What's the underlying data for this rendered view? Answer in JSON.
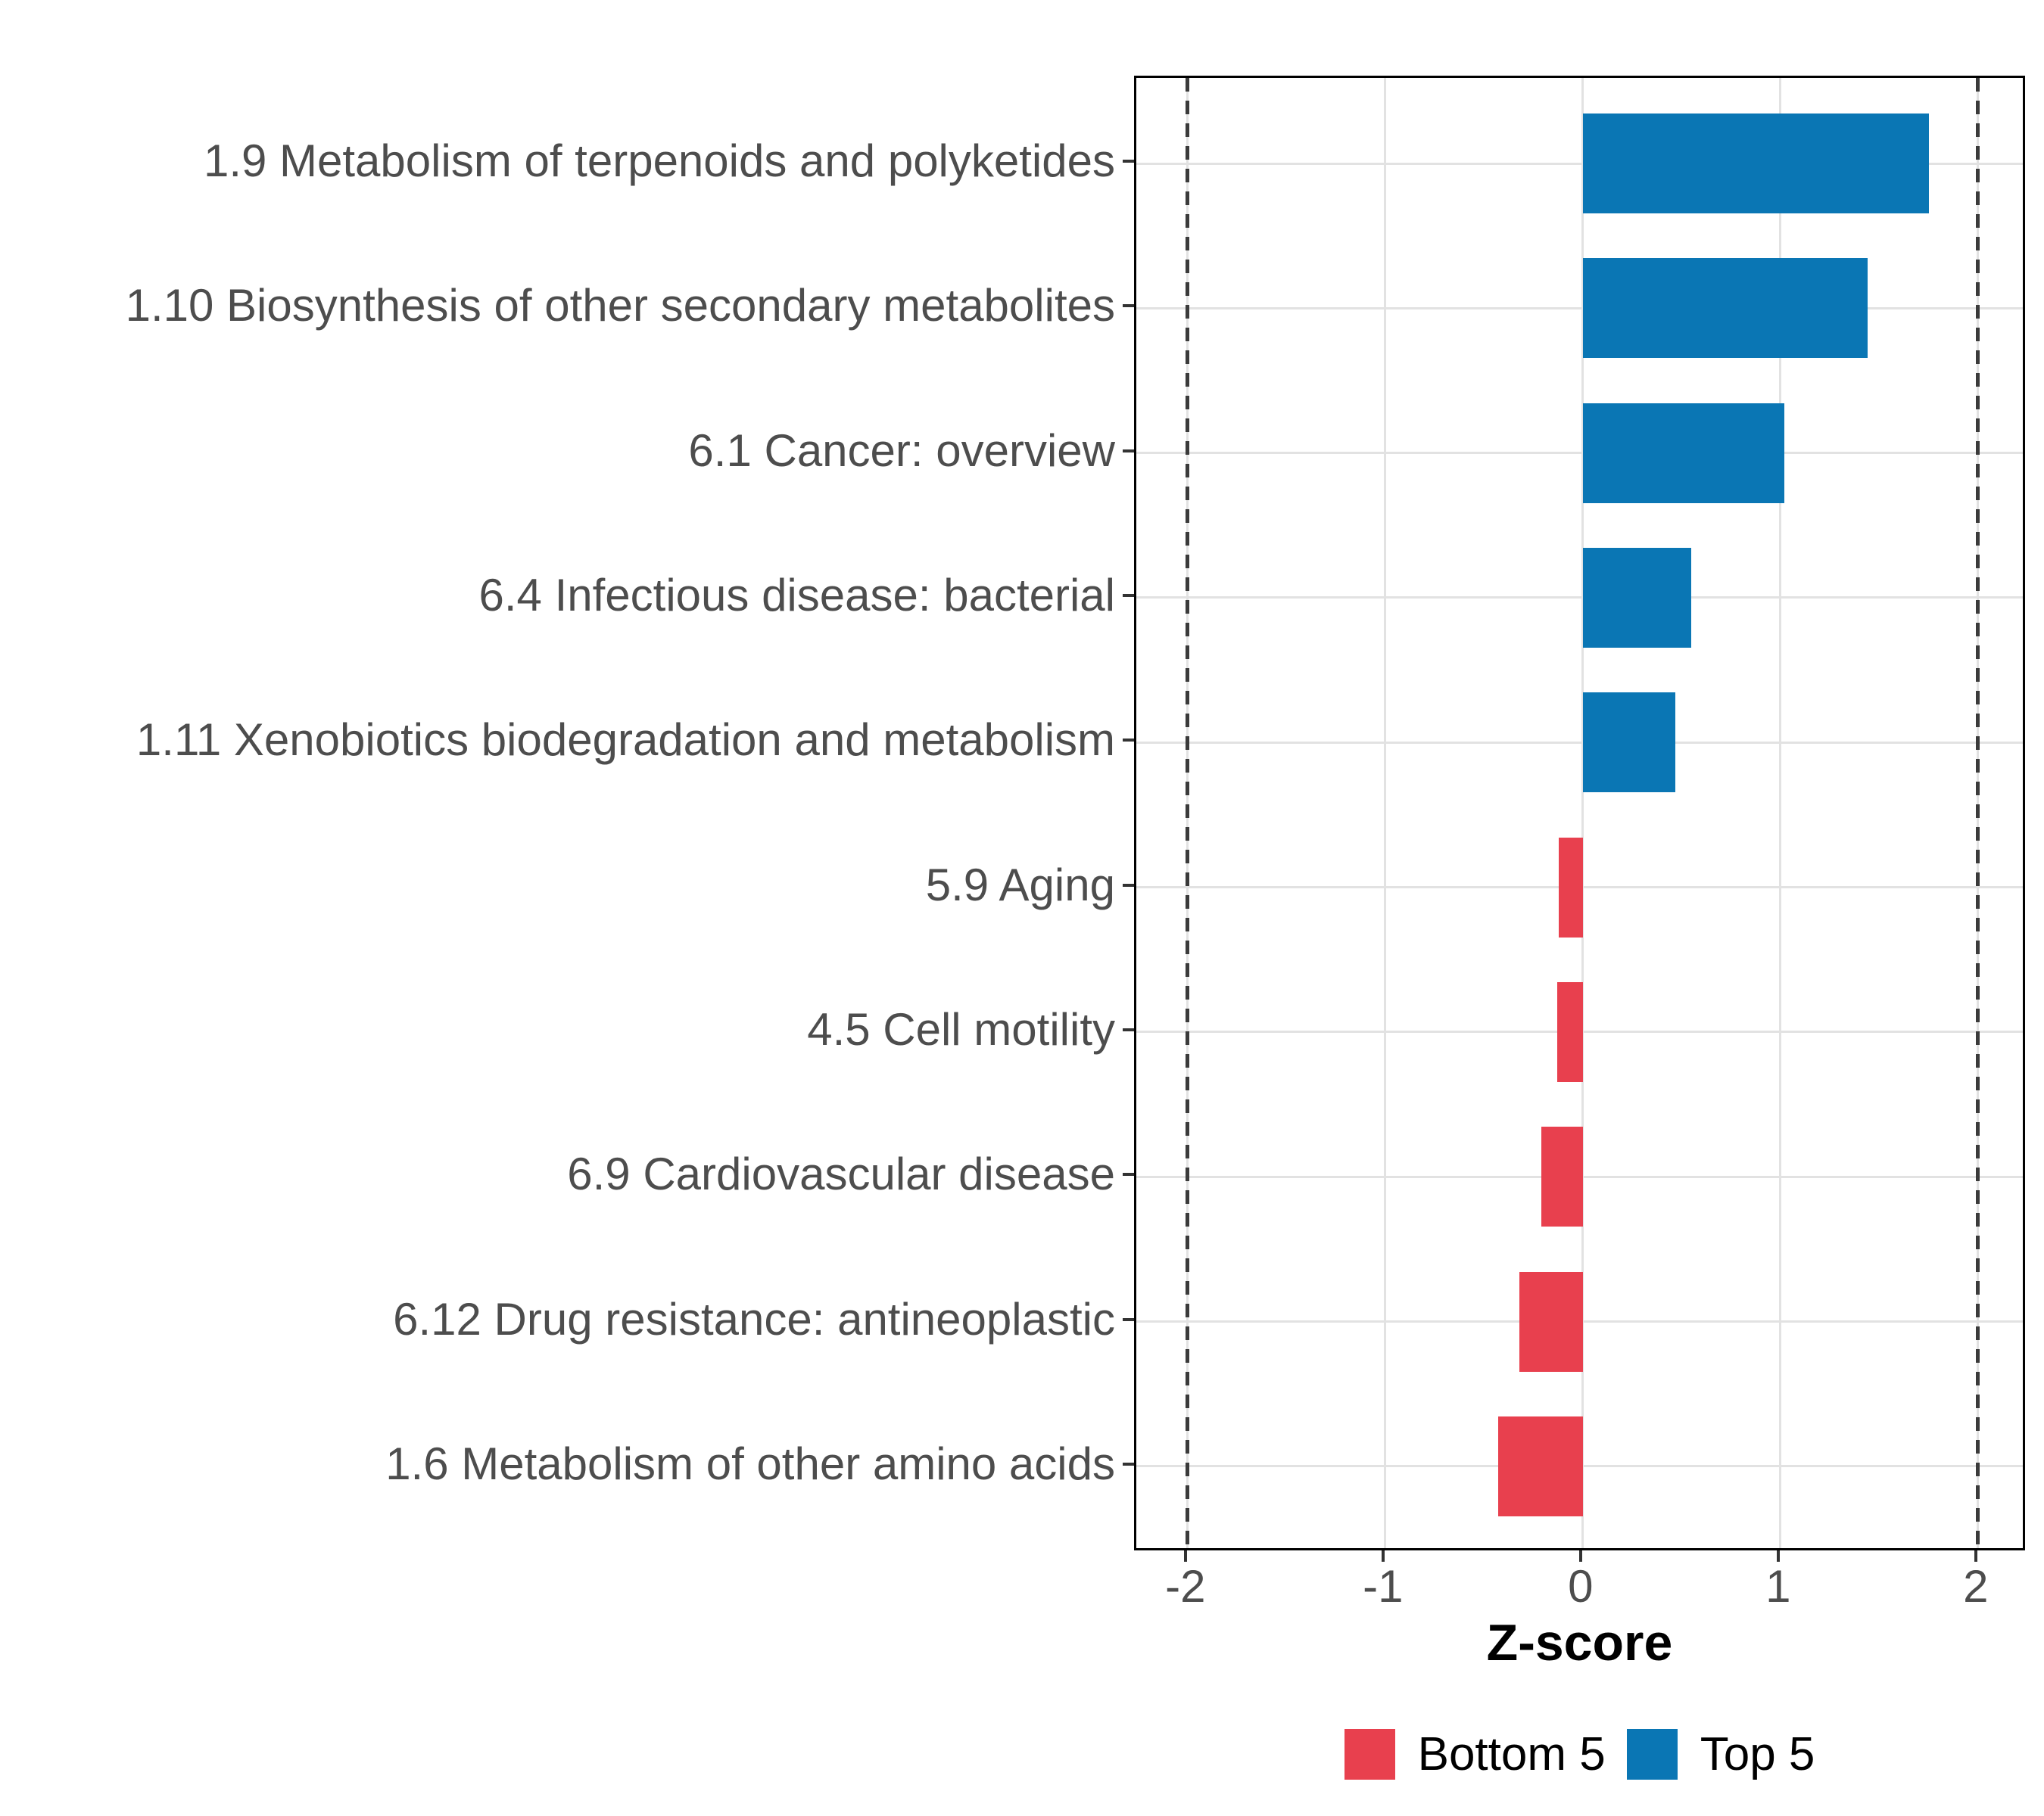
{
  "chart_data": {
    "type": "bar",
    "orientation": "horizontal",
    "xlabel": "Z-score",
    "x_tick_values": [
      -2,
      -1,
      0,
      1,
      2
    ],
    "x_tick_labels": [
      "-2",
      "-1",
      "0",
      "1",
      "2"
    ],
    "xlim": [
      -2.26,
      2.25
    ],
    "grid": {
      "major": true,
      "minor": false,
      "color": "#e2e2e2"
    },
    "reference_lines": {
      "values": [
        -2,
        2
      ],
      "style": "dashed",
      "color": "#3b3b3b"
    },
    "categories": [
      "1.9 Metabolism of terpenoids and polyketides",
      "1.10 Biosynthesis of other secondary metabolites",
      "6.1 Cancer: overview",
      "6.4 Infectious disease: bacterial",
      "1.11 Xenobiotics biodegradation and metabolism",
      "5.9 Aging",
      "4.5 Cell motility",
      "6.9 Cardiovascular disease",
      "6.12 Drug resistance: antineoplastic",
      "1.6 Metabolism of other amino acids"
    ],
    "values": [
      1.75,
      1.44,
      1.02,
      0.55,
      0.47,
      -0.12,
      -0.13,
      -0.21,
      -0.32,
      -0.43
    ],
    "groups_per_bar": [
      "Top 5",
      "Top 5",
      "Top 5",
      "Top 5",
      "Top 5",
      "Bottom 5",
      "Bottom 5",
      "Bottom 5",
      "Bottom 5",
      "Bottom 5"
    ],
    "colors": {
      "Top 5": "#0a76b4",
      "Bottom 5": "#e8404e"
    },
    "legend": {
      "position": "bottom",
      "entries": [
        {
          "label": "Bottom 5",
          "color": "#e8404e"
        },
        {
          "label": "Top 5",
          "color": "#0a76b4"
        }
      ]
    }
  }
}
